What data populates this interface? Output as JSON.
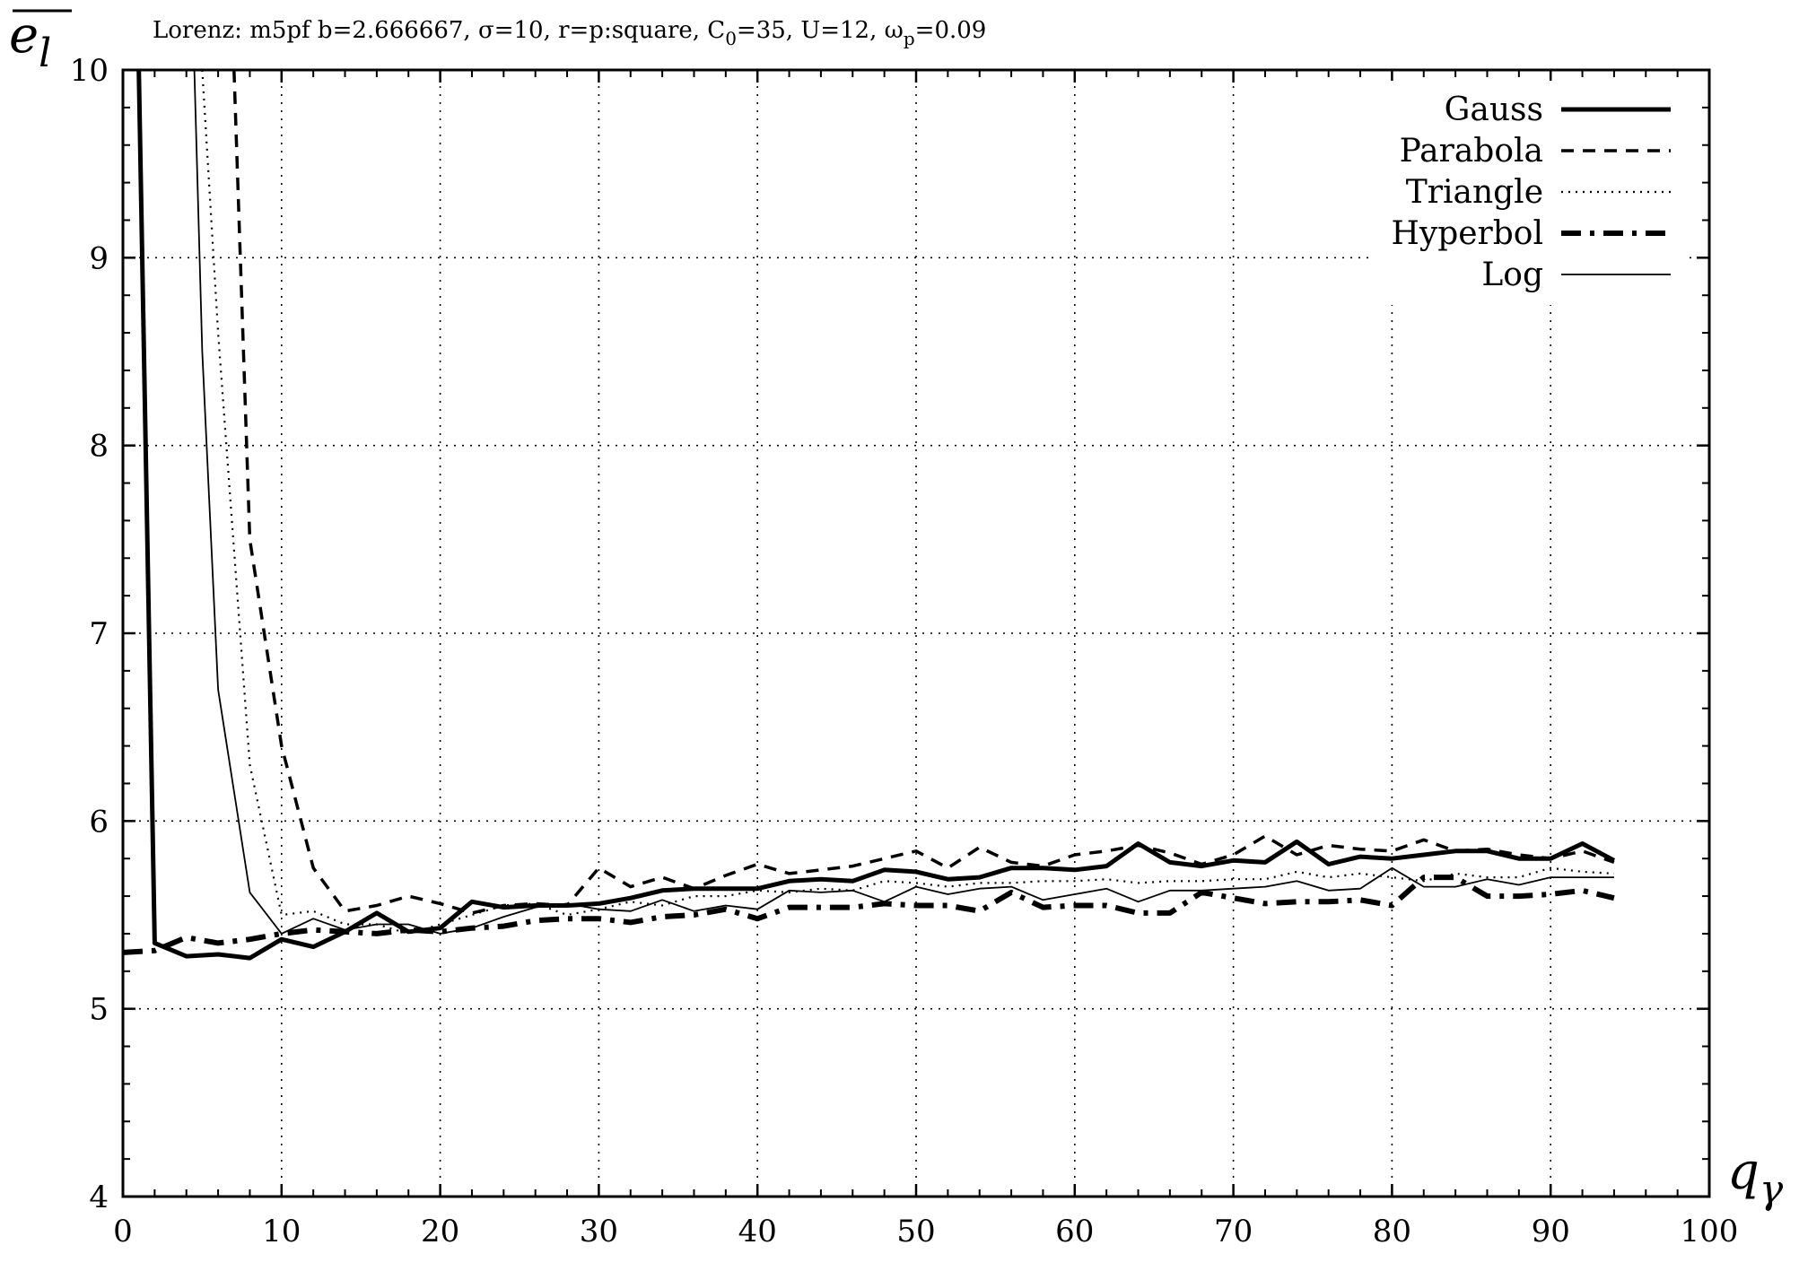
{
  "title": {
    "prefix": "Lorenz: m5pf b=2.666667, σ=10, r=p:square, C",
    "c_sub": "0",
    "middle": "=35, U=12, ω",
    "w_sub": "p",
    "suffix": "=0.09"
  },
  "y_axis_symbol": {
    "base": "e",
    "sub": "l"
  },
  "x_axis_symbol": {
    "base": "q",
    "sub": "γ"
  },
  "chart_data": {
    "type": "line",
    "xlim": [
      0,
      100
    ],
    "ylim": [
      4,
      10
    ],
    "grid": true,
    "legend_position": "top-right",
    "x_ticks": [
      "0",
      "10",
      "20",
      "30",
      "40",
      "50",
      "60",
      "70",
      "80",
      "90",
      "100"
    ],
    "y_ticks": [
      "4",
      "5",
      "6",
      "7",
      "8",
      "9",
      "10"
    ],
    "series": [
      {
        "name": "Gauss",
        "style": "thick-solid",
        "points": [
          [
            1,
            10
          ],
          [
            2,
            5.35
          ],
          [
            4,
            5.28
          ],
          [
            6,
            5.29
          ],
          [
            8,
            5.27
          ],
          [
            10,
            5.37
          ],
          [
            12,
            5.33
          ],
          [
            14,
            5.41
          ],
          [
            16,
            5.51
          ],
          [
            18,
            5.41
          ],
          [
            20,
            5.43
          ],
          [
            22,
            5.57
          ],
          [
            24,
            5.54
          ],
          [
            26,
            5.55
          ],
          [
            28,
            5.55
          ],
          [
            30,
            5.56
          ],
          [
            32,
            5.59
          ],
          [
            34,
            5.63
          ],
          [
            36,
            5.64
          ],
          [
            38,
            5.64
          ],
          [
            40,
            5.64
          ],
          [
            42,
            5.68
          ],
          [
            44,
            5.69
          ],
          [
            46,
            5.68
          ],
          [
            48,
            5.74
          ],
          [
            50,
            5.73
          ],
          [
            52,
            5.69
          ],
          [
            54,
            5.7
          ],
          [
            56,
            5.75
          ],
          [
            58,
            5.75
          ],
          [
            60,
            5.74
          ],
          [
            62,
            5.76
          ],
          [
            64,
            5.88
          ],
          [
            66,
            5.78
          ],
          [
            68,
            5.76
          ],
          [
            70,
            5.79
          ],
          [
            72,
            5.78
          ],
          [
            74,
            5.89
          ],
          [
            76,
            5.77
          ],
          [
            78,
            5.81
          ],
          [
            80,
            5.8
          ],
          [
            82,
            5.82
          ],
          [
            84,
            5.84
          ],
          [
            86,
            5.84
          ],
          [
            88,
            5.8
          ],
          [
            90,
            5.8
          ],
          [
            92,
            5.88
          ],
          [
            94,
            5.79
          ]
        ]
      },
      {
        "name": "Parabola",
        "style": "dashed",
        "points": [
          [
            7,
            10
          ],
          [
            8,
            7.5
          ],
          [
            10,
            6.4
          ],
          [
            12,
            5.75
          ],
          [
            14,
            5.52
          ],
          [
            16,
            5.55
          ],
          [
            18,
            5.6
          ],
          [
            20,
            5.56
          ],
          [
            22,
            5.51
          ],
          [
            24,
            5.55
          ],
          [
            26,
            5.56
          ],
          [
            28,
            5.55
          ],
          [
            30,
            5.75
          ],
          [
            32,
            5.65
          ],
          [
            34,
            5.7
          ],
          [
            36,
            5.64
          ],
          [
            38,
            5.71
          ],
          [
            40,
            5.77
          ],
          [
            42,
            5.72
          ],
          [
            44,
            5.74
          ],
          [
            46,
            5.76
          ],
          [
            48,
            5.8
          ],
          [
            50,
            5.84
          ],
          [
            52,
            5.75
          ],
          [
            54,
            5.86
          ],
          [
            56,
            5.78
          ],
          [
            58,
            5.76
          ],
          [
            60,
            5.82
          ],
          [
            62,
            5.84
          ],
          [
            64,
            5.87
          ],
          [
            66,
            5.83
          ],
          [
            68,
            5.77
          ],
          [
            70,
            5.82
          ],
          [
            72,
            5.92
          ],
          [
            74,
            5.82
          ],
          [
            76,
            5.87
          ],
          [
            78,
            5.85
          ],
          [
            80,
            5.84
          ],
          [
            82,
            5.9
          ],
          [
            84,
            5.84
          ],
          [
            86,
            5.85
          ],
          [
            88,
            5.82
          ],
          [
            90,
            5.8
          ],
          [
            92,
            5.84
          ],
          [
            94,
            5.78
          ]
        ]
      },
      {
        "name": "Triangle",
        "style": "dotted",
        "points": [
          [
            5,
            10
          ],
          [
            6,
            8.6
          ],
          [
            8,
            6.3
          ],
          [
            10,
            5.5
          ],
          [
            12,
            5.52
          ],
          [
            14,
            5.45
          ],
          [
            16,
            5.45
          ],
          [
            18,
            5.4
          ],
          [
            20,
            5.45
          ],
          [
            22,
            5.5
          ],
          [
            24,
            5.55
          ],
          [
            26,
            5.56
          ],
          [
            28,
            5.5
          ],
          [
            30,
            5.53
          ],
          [
            32,
            5.57
          ],
          [
            34,
            5.55
          ],
          [
            36,
            5.6
          ],
          [
            38,
            5.6
          ],
          [
            40,
            5.63
          ],
          [
            42,
            5.62
          ],
          [
            44,
            5.64
          ],
          [
            46,
            5.63
          ],
          [
            48,
            5.68
          ],
          [
            50,
            5.67
          ],
          [
            52,
            5.65
          ],
          [
            54,
            5.67
          ],
          [
            56,
            5.67
          ],
          [
            58,
            5.68
          ],
          [
            60,
            5.68
          ],
          [
            62,
            5.69
          ],
          [
            64,
            5.67
          ],
          [
            66,
            5.68
          ],
          [
            68,
            5.68
          ],
          [
            70,
            5.69
          ],
          [
            72,
            5.69
          ],
          [
            74,
            5.73
          ],
          [
            76,
            5.7
          ],
          [
            78,
            5.72
          ],
          [
            80,
            5.7
          ],
          [
            82,
            5.68
          ],
          [
            84,
            5.72
          ],
          [
            86,
            5.7
          ],
          [
            88,
            5.7
          ],
          [
            90,
            5.75
          ],
          [
            92,
            5.73
          ],
          [
            94,
            5.72
          ]
        ]
      },
      {
        "name": "Hyperbol",
        "style": "dash-dot",
        "points": [
          [
            0,
            5.3
          ],
          [
            2,
            5.31
          ],
          [
            4,
            5.38
          ],
          [
            6,
            5.35
          ],
          [
            8,
            5.37
          ],
          [
            10,
            5.4
          ],
          [
            12,
            5.42
          ],
          [
            14,
            5.41
          ],
          [
            16,
            5.4
          ],
          [
            18,
            5.42
          ],
          [
            20,
            5.41
          ],
          [
            22,
            5.43
          ],
          [
            24,
            5.44
          ],
          [
            26,
            5.47
          ],
          [
            28,
            5.48
          ],
          [
            30,
            5.48
          ],
          [
            32,
            5.46
          ],
          [
            34,
            5.49
          ],
          [
            36,
            5.5
          ],
          [
            38,
            5.53
          ],
          [
            40,
            5.48
          ],
          [
            42,
            5.54
          ],
          [
            44,
            5.54
          ],
          [
            46,
            5.54
          ],
          [
            48,
            5.56
          ],
          [
            50,
            5.55
          ],
          [
            52,
            5.55
          ],
          [
            54,
            5.52
          ],
          [
            56,
            5.62
          ],
          [
            58,
            5.54
          ],
          [
            60,
            5.55
          ],
          [
            62,
            5.55
          ],
          [
            64,
            5.51
          ],
          [
            66,
            5.51
          ],
          [
            68,
            5.62
          ],
          [
            70,
            5.59
          ],
          [
            72,
            5.56
          ],
          [
            74,
            5.57
          ],
          [
            76,
            5.57
          ],
          [
            78,
            5.58
          ],
          [
            80,
            5.55
          ],
          [
            82,
            5.7
          ],
          [
            84,
            5.7
          ],
          [
            86,
            5.6
          ],
          [
            88,
            5.6
          ],
          [
            90,
            5.61
          ],
          [
            92,
            5.63
          ],
          [
            94,
            5.59
          ]
        ]
      },
      {
        "name": "Log",
        "style": "thin-solid",
        "points": [
          [
            4.5,
            10
          ],
          [
            5,
            8.5
          ],
          [
            6,
            6.7
          ],
          [
            8,
            5.62
          ],
          [
            10,
            5.4
          ],
          [
            12,
            5.48
          ],
          [
            14,
            5.42
          ],
          [
            16,
            5.45
          ],
          [
            18,
            5.45
          ],
          [
            20,
            5.4
          ],
          [
            22,
            5.43
          ],
          [
            24,
            5.49
          ],
          [
            26,
            5.54
          ],
          [
            28,
            5.56
          ],
          [
            30,
            5.53
          ],
          [
            32,
            5.52
          ],
          [
            34,
            5.58
          ],
          [
            36,
            5.52
          ],
          [
            38,
            5.55
          ],
          [
            40,
            5.53
          ],
          [
            42,
            5.63
          ],
          [
            44,
            5.62
          ],
          [
            46,
            5.63
          ],
          [
            48,
            5.57
          ],
          [
            50,
            5.65
          ],
          [
            52,
            5.61
          ],
          [
            54,
            5.64
          ],
          [
            56,
            5.65
          ],
          [
            58,
            5.58
          ],
          [
            60,
            5.61
          ],
          [
            62,
            5.64
          ],
          [
            64,
            5.57
          ],
          [
            66,
            5.63
          ],
          [
            68,
            5.63
          ],
          [
            70,
            5.64
          ],
          [
            72,
            5.65
          ],
          [
            74,
            5.68
          ],
          [
            76,
            5.63
          ],
          [
            78,
            5.64
          ],
          [
            80,
            5.75
          ],
          [
            82,
            5.65
          ],
          [
            84,
            5.65
          ],
          [
            86,
            5.69
          ],
          [
            88,
            5.66
          ],
          [
            90,
            5.7
          ],
          [
            92,
            5.7
          ],
          [
            94,
            5.7
          ]
        ]
      }
    ]
  }
}
